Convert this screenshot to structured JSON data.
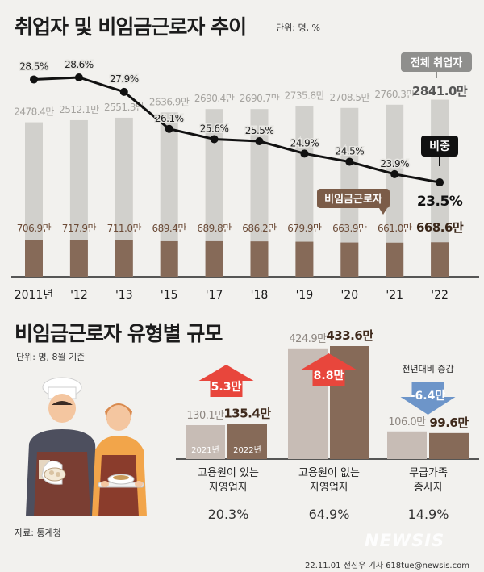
{
  "header": {
    "title": "취업자 및 비임금근로자 추이",
    "unit": "단위: 명, %"
  },
  "chart_data": [
    {
      "type": "bar+line",
      "title": "취업자 및 비임금근로자 추이",
      "unit": "단위: 명, %",
      "categories": [
        "2011년",
        "'12",
        "'13",
        "'15",
        "'17",
        "'18",
        "'19",
        "'20",
        "'21",
        "'22"
      ],
      "series": [
        {
          "name": "전체 취업자",
          "type": "bar",
          "values": [
            2478.4,
            2512.1,
            2551.3,
            2636.9,
            2690.4,
            2690.7,
            2735.8,
            2708.5,
            2760.3,
            2841.0
          ],
          "labels": [
            "2478.4만",
            "2512.1만",
            "2551.3만",
            "2636.9만",
            "2690.4만",
            "2690.7만",
            "2735.8만",
            "2708.5만",
            "2760.3만",
            "2841.0만"
          ],
          "color": "#d1d0cc"
        },
        {
          "name": "비임금근로자",
          "type": "bar",
          "values": [
            706.9,
            717.9,
            711.0,
            689.4,
            689.8,
            686.2,
            679.9,
            663.9,
            661.0,
            668.6
          ],
          "labels": [
            "706.9만",
            "717.9만",
            "711.0만",
            "689.4만",
            "689.8만",
            "686.2만",
            "679.9만",
            "663.9만",
            "661.0만",
            "668.6만"
          ],
          "color": "#866a58"
        },
        {
          "name": "비중",
          "type": "line",
          "values": [
            28.5,
            28.6,
            27.9,
            26.1,
            25.6,
            25.5,
            24.9,
            24.5,
            23.9,
            23.5
          ],
          "labels": [
            "28.5%",
            "28.6%",
            "27.9%",
            "26.1%",
            "25.6%",
            "25.5%",
            "24.9%",
            "24.5%",
            "23.9%",
            "23.5%"
          ],
          "color": "#111111"
        }
      ],
      "callouts": {
        "total": "전체 취업자",
        "nonwage": "비임금근로자",
        "share": "비중"
      }
    },
    {
      "type": "bar",
      "title": "비임금근로자 유형별 규모",
      "unit": "단위: 명, 8월 기준",
      "legend_years": [
        "2021년",
        "2022년"
      ],
      "change_label": "전년대비 증감",
      "groups": [
        {
          "name_line1": "고용원이 있는",
          "name_line2": "자영업자",
          "v2021": 130.1,
          "v2022": 135.4,
          "l2021": "130.1만",
          "l2022": "135.4만",
          "change": "5.3만",
          "direction": "up",
          "share": "20.3%"
        },
        {
          "name_line1": "고용원이 없는",
          "name_line2": "자영업자",
          "v2021": 424.9,
          "v2022": 433.6,
          "l2021": "424.9만",
          "l2022": "433.6만",
          "change": "8.8만",
          "direction": "up",
          "share": "64.9%"
        },
        {
          "name_line1": "무급가족",
          "name_line2": "종사자",
          "v2021": 106.0,
          "v2022": 99.6,
          "l2021": "106.0만",
          "l2022": "99.6만",
          "change": "-6.4만",
          "direction": "down",
          "share": "14.9%"
        }
      ]
    }
  ],
  "section2": {
    "title": "비임금근로자 유형별 규모",
    "unit": "단위: 명, 8월 기준"
  },
  "footer": {
    "source": "자료: 통계청",
    "credit": "22.11.01 전진우 기자 618tue@newsis.com",
    "watermark": "NEWSIS"
  },
  "colors": {
    "bg": "#f2f1ee",
    "light_bar": "#d1d0cc",
    "dark_bar": "#866a58",
    "up": "#e8463c",
    "down": "#6d95c9",
    "text_brown": "#6b4a36"
  }
}
